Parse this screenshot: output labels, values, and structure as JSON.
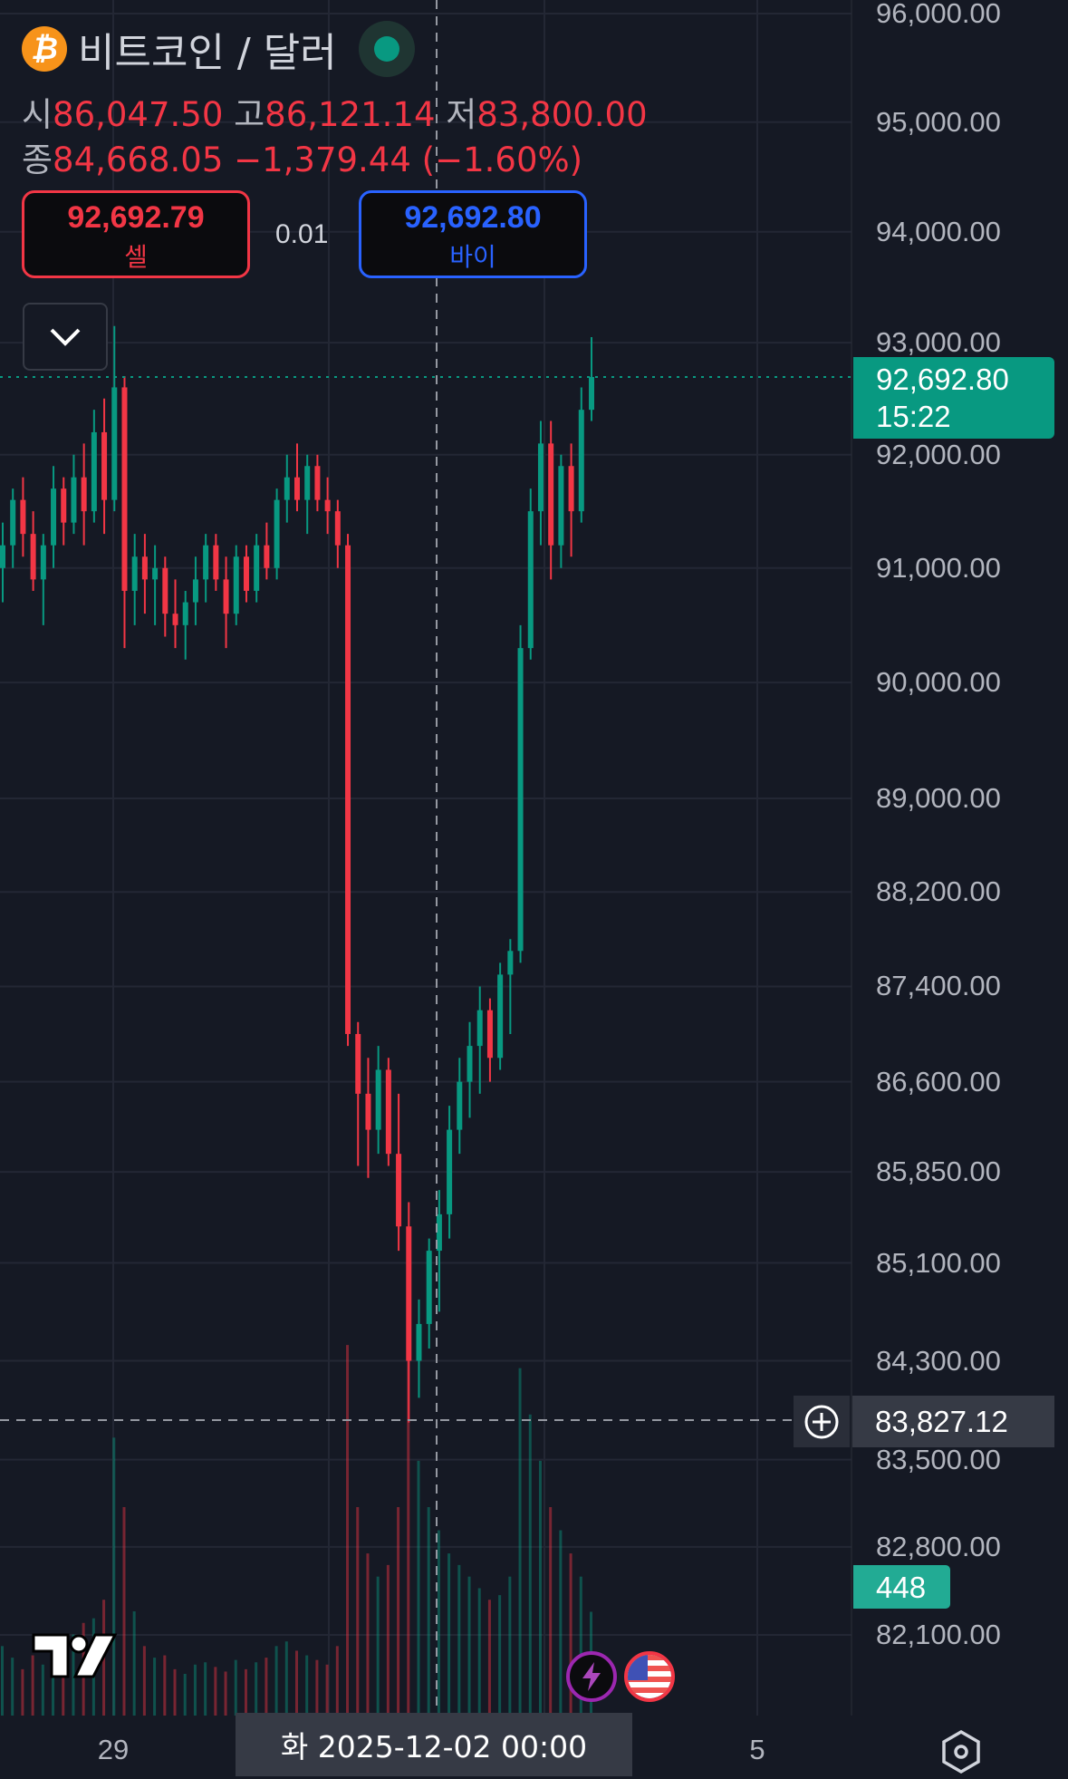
{
  "header": {
    "symbol_icon": "bitcoin-icon",
    "title": "비트코인 / 달러",
    "market_status": "open",
    "ohlc": {
      "open_label": "시",
      "open": "86,047.50",
      "high_label": "고",
      "high": "86,121.14",
      "low_label": "저",
      "low": "83,800.00",
      "close_label": "종",
      "close": "84,668.05",
      "change": "−1,379.44",
      "change_pct": "(−1.60%)"
    }
  },
  "quote": {
    "sell_price": "92,692.79",
    "sell_label": "셀",
    "spread": "0.01",
    "buy_price": "92,692.80",
    "buy_label": "바이"
  },
  "price_axis": {
    "labels": [
      "96,000.00",
      "95,000.00",
      "94,000.00",
      "93,000.00",
      "92,000.00",
      "91,000.00",
      "90,000.00",
      "89,000.00",
      "88,200.00",
      "87,400.00",
      "86,600.00",
      "85,850.00",
      "85,100.00",
      "84,300.00",
      "83,500.00",
      "82,800.00",
      "82,100.00"
    ],
    "levels": [
      96000,
      95000,
      94000,
      93000,
      92000,
      91000,
      90000,
      89000,
      88200,
      87400,
      86600,
      85850,
      85100,
      84300,
      83500,
      82800,
      82100
    ],
    "scale": "log",
    "current_price": "92,692.80",
    "countdown": "15:22",
    "crosshair_price": "83,827.12",
    "volume_value": "448"
  },
  "time_axis": {
    "labels": [
      "29",
      "5"
    ],
    "crosshair_date": "화 2025-12-02   00:00"
  },
  "colors": {
    "background": "#151924",
    "up": "#089981",
    "down": "#f23645",
    "grid": "#232734",
    "price_label": "#089981",
    "volume_label": "#22ab94"
  },
  "chart_data": {
    "type": "candlestick",
    "last_price": 92692.8,
    "crosshair_price": 83827.12,
    "candles": [
      [
        91000,
        91400,
        90700,
        91200
      ],
      [
        91200,
        91700,
        91000,
        91600
      ],
      [
        91600,
        91800,
        91100,
        91300
      ],
      [
        91300,
        91500,
        90800,
        90900
      ],
      [
        90900,
        91300,
        90500,
        91200
      ],
      [
        91200,
        91900,
        91000,
        91700
      ],
      [
        91700,
        91800,
        91200,
        91400
      ],
      [
        91400,
        92000,
        91300,
        91800
      ],
      [
        91800,
        92100,
        91200,
        91500
      ],
      [
        91500,
        92400,
        91400,
        92200
      ],
      [
        92200,
        92500,
        91300,
        91600
      ],
      [
        91600,
        93150,
        91500,
        92600
      ],
      [
        92600,
        92700,
        90300,
        90800
      ],
      [
        90800,
        91300,
        90500,
        91100
      ],
      [
        91100,
        91300,
        90600,
        90900
      ],
      [
        90900,
        91200,
        90500,
        91000
      ],
      [
        91000,
        91100,
        90400,
        90600
      ],
      [
        90600,
        90900,
        90300,
        90500
      ],
      [
        90500,
        90800,
        90200,
        90700
      ],
      [
        90700,
        91100,
        90500,
        90900
      ],
      [
        90900,
        91300,
        90700,
        91200
      ],
      [
        91200,
        91300,
        90800,
        90900
      ],
      [
        90900,
        91100,
        90300,
        90600
      ],
      [
        90600,
        91200,
        90500,
        91100
      ],
      [
        91100,
        91200,
        90700,
        90800
      ],
      [
        90800,
        91300,
        90700,
        91200
      ],
      [
        91200,
        91400,
        90900,
        91000
      ],
      [
        91000,
        91700,
        90900,
        91600
      ],
      [
        91600,
        92000,
        91400,
        91800
      ],
      [
        91800,
        92100,
        91500,
        91600
      ],
      [
        91600,
        92000,
        91300,
        91900
      ],
      [
        91900,
        92000,
        91500,
        91600
      ],
      [
        91600,
        91800,
        91300,
        91500
      ],
      [
        91500,
        91600,
        91000,
        91200
      ],
      [
        91200,
        91300,
        86900,
        87000
      ],
      [
        87000,
        87100,
        85900,
        86500
      ],
      [
        86500,
        86800,
        85800,
        86200
      ],
      [
        86200,
        86900,
        86000,
        86700
      ],
      [
        86700,
        86800,
        85900,
        86000
      ],
      [
        86000,
        86500,
        85200,
        85400
      ],
      [
        85400,
        85600,
        83800,
        84300
      ],
      [
        84300,
        84800,
        84000,
        84600
      ],
      [
        84600,
        85300,
        84400,
        85200
      ],
      [
        85200,
        85700,
        84700,
        85500
      ],
      [
        85500,
        86400,
        85300,
        86200
      ],
      [
        86200,
        86800,
        86000,
        86600
      ],
      [
        86600,
        87100,
        86300,
        86900
      ],
      [
        86900,
        87400,
        86500,
        87200
      ],
      [
        87200,
        87300,
        86600,
        86800
      ],
      [
        86800,
        87600,
        86700,
        87500
      ],
      [
        87500,
        87800,
        87000,
        87700
      ],
      [
        87700,
        90500,
        87600,
        90300
      ],
      [
        90300,
        91700,
        90200,
        91500
      ],
      [
        91500,
        92300,
        91200,
        92100
      ],
      [
        92100,
        92300,
        90900,
        91200
      ],
      [
        91200,
        92000,
        91000,
        91900
      ],
      [
        91900,
        92100,
        91100,
        91500
      ],
      [
        91500,
        92600,
        91400,
        92400
      ],
      [
        92400,
        93050,
        92300,
        92692.8
      ]
    ],
    "volumes": [
      300,
      250,
      200,
      260,
      220,
      300,
      280,
      350,
      400,
      420,
      500,
      1200,
      900,
      450,
      300,
      250,
      260,
      200,
      180,
      220,
      230,
      210,
      190,
      240,
      200,
      230,
      250,
      300,
      320,
      280,
      260,
      240,
      220,
      300,
      1600,
      900,
      700,
      600,
      650,
      900,
      1800,
      1100,
      900,
      800,
      700,
      650,
      600,
      550,
      500,
      520,
      600,
      1500,
      1300,
      1100,
      900,
      800,
      700,
      600,
      448
    ]
  }
}
